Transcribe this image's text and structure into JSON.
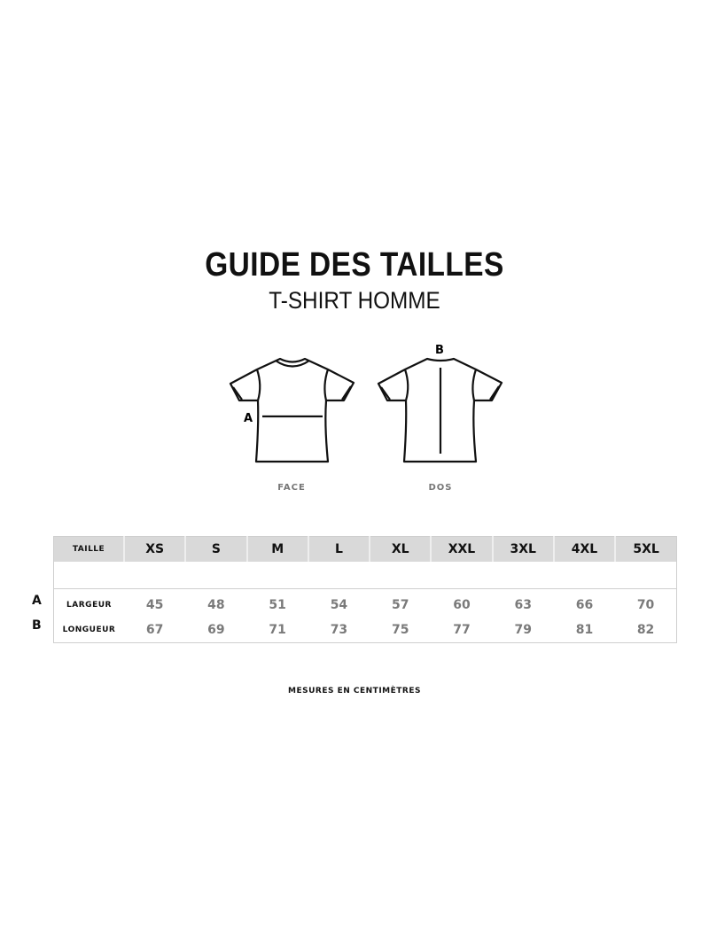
{
  "title": "GUIDE DES TAILLES",
  "subtitle": "T-SHIRT HOMME",
  "views": {
    "front": "FACE",
    "back": "DOS",
    "marker_a": "A",
    "marker_b": "B"
  },
  "table": {
    "header_label": "TAILLE",
    "sizes": [
      "XS",
      "S",
      "M",
      "L",
      "XL",
      "XXL",
      "3XL",
      "4XL",
      "5XL"
    ],
    "rows": [
      {
        "key": "A",
        "label": "LARGEUR",
        "values": [
          "45",
          "48",
          "51",
          "54",
          "57",
          "60",
          "63",
          "66",
          "70"
        ]
      },
      {
        "key": "B",
        "label": "LONGUEUR",
        "values": [
          "67",
          "69",
          "71",
          "73",
          "75",
          "77",
          "79",
          "81",
          "82"
        ]
      }
    ]
  },
  "note": "MESURES EN CENTIMÈTRES"
}
